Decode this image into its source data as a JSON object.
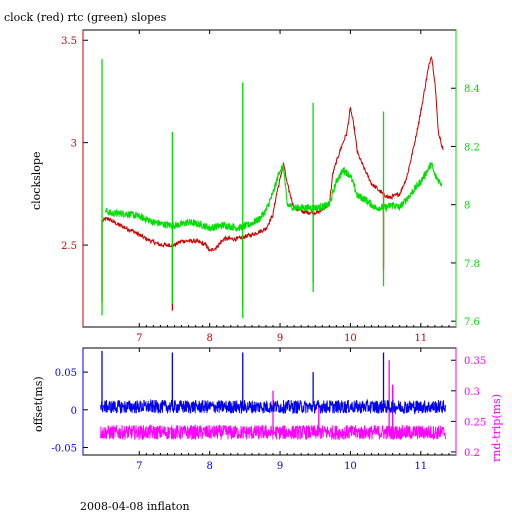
{
  "title": "clock (red) rtc (green) slopes",
  "footer": "2008-04-08 inflaton",
  "colors": {
    "red": "#cc0000",
    "green": "#00dd00",
    "blue": "#0000ee",
    "magenta": "#ff00ff",
    "axis": "#000000"
  },
  "chart_data": [
    {
      "type": "line",
      "title": "clock (red) rtc (green) slopes",
      "xlim": [
        6.2,
        11.5
      ],
      "x_ticks": [
        7,
        8,
        9,
        10,
        11
      ],
      "ylabel_left": "clockslope",
      "ylim_left": [
        2.1,
        3.55
      ],
      "y_ticks_left": [
        2.5,
        3,
        3.5
      ],
      "ylim_right": [
        7.58,
        8.6
      ],
      "y_ticks_right": [
        7.6,
        7.8,
        8,
        8.2,
        8.4
      ],
      "grid": false,
      "series": [
        {
          "axis": "left",
          "color": "red",
          "points": [
            [
              6.48,
              2.62
            ],
            [
              6.55,
              2.63
            ],
            [
              6.7,
              2.6
            ],
            [
              6.9,
              2.57
            ],
            [
              7.1,
              2.53
            ],
            [
              7.3,
              2.5
            ],
            [
              7.44,
              2.5
            ],
            [
              7.5,
              2.5
            ],
            [
              7.6,
              2.52
            ],
            [
              7.8,
              2.52
            ],
            [
              7.95,
              2.5
            ],
            [
              8.0,
              2.47
            ],
            [
              8.1,
              2.49
            ],
            [
              8.2,
              2.53
            ],
            [
              8.4,
              2.53
            ],
            [
              8.48,
              2.54
            ],
            [
              8.6,
              2.55
            ],
            [
              8.8,
              2.58
            ],
            [
              8.9,
              2.65
            ],
            [
              8.95,
              2.75
            ],
            [
              9.0,
              2.82
            ],
            [
              9.05,
              2.9
            ],
            [
              9.1,
              2.8
            ],
            [
              9.2,
              2.68
            ],
            [
              9.35,
              2.66
            ],
            [
              9.46,
              2.66
            ],
            [
              9.55,
              2.66
            ],
            [
              9.7,
              2.7
            ],
            [
              9.75,
              2.85
            ],
            [
              9.85,
              2.96
            ],
            [
              9.95,
              3.05
            ],
            [
              10.0,
              3.17
            ],
            [
              10.05,
              3.08
            ],
            [
              10.1,
              2.95
            ],
            [
              10.2,
              2.87
            ],
            [
              10.3,
              2.8
            ],
            [
              10.46,
              2.75
            ],
            [
              10.55,
              2.73
            ],
            [
              10.7,
              2.75
            ],
            [
              10.8,
              2.83
            ],
            [
              10.9,
              2.98
            ],
            [
              11.0,
              3.15
            ],
            [
              11.1,
              3.35
            ],
            [
              11.15,
              3.43
            ],
            [
              11.2,
              3.3
            ],
            [
              11.25,
              3.05
            ],
            [
              11.32,
              2.96
            ]
          ],
          "spikes": [
            {
              "x": 6.47,
              "low": 2.22,
              "high": 2.62
            },
            {
              "x": 7.47,
              "low": 2.18,
              "high": 2.5
            },
            {
              "x": 8.47,
              "low": 2.2,
              "high": 2.54
            },
            {
              "x": 9.47,
              "low": 2.32,
              "high": 2.66
            },
            {
              "x": 10.47,
              "low": 2.38,
              "high": 2.75
            }
          ]
        },
        {
          "axis": "right",
          "color": "green",
          "points": [
            [
              6.52,
              7.98
            ],
            [
              6.6,
              7.97
            ],
            [
              6.8,
              7.97
            ],
            [
              7.0,
              7.96
            ],
            [
              7.2,
              7.94
            ],
            [
              7.4,
              7.93
            ],
            [
              7.55,
              7.93
            ],
            [
              7.7,
              7.94
            ],
            [
              7.9,
              7.93
            ],
            [
              8.0,
              7.92
            ],
            [
              8.2,
              7.93
            ],
            [
              8.4,
              7.92
            ],
            [
              8.55,
              7.93
            ],
            [
              8.7,
              7.95
            ],
            [
              8.8,
              7.98
            ],
            [
              8.9,
              8.04
            ],
            [
              9.0,
              8.12
            ],
            [
              9.05,
              8.13
            ],
            [
              9.1,
              8.0
            ],
            [
              9.2,
              7.99
            ],
            [
              9.4,
              7.99
            ],
            [
              9.55,
              7.99
            ],
            [
              9.7,
              8.0
            ],
            [
              9.8,
              8.08
            ],
            [
              9.9,
              8.12
            ],
            [
              10.0,
              8.1
            ],
            [
              10.1,
              8.03
            ],
            [
              10.2,
              8.02
            ],
            [
              10.35,
              7.99
            ],
            [
              10.5,
              7.99
            ],
            [
              10.6,
              8.0
            ],
            [
              10.7,
              7.99
            ],
            [
              10.8,
              8.02
            ],
            [
              10.9,
              8.05
            ],
            [
              11.0,
              8.08
            ],
            [
              11.1,
              8.12
            ],
            [
              11.15,
              8.14
            ],
            [
              11.2,
              8.1
            ],
            [
              11.3,
              8.07
            ]
          ],
          "spikes": [
            {
              "x": 6.47,
              "low": 7.62,
              "high": 8.5
            },
            {
              "x": 7.47,
              "low": 7.66,
              "high": 8.25
            },
            {
              "x": 8.47,
              "low": 7.61,
              "high": 8.42
            },
            {
              "x": 9.47,
              "low": 7.7,
              "high": 8.35
            },
            {
              "x": 10.47,
              "low": 7.72,
              "high": 8.32
            }
          ]
        }
      ]
    },
    {
      "type": "line",
      "xlim": [
        6.2,
        11.5
      ],
      "x_ticks": [
        7,
        8,
        9,
        10,
        11
      ],
      "ylabel_left": "offset(ms)",
      "ylim_left": [
        -0.06,
        0.082
      ],
      "y_ticks_left": [
        -0.05,
        0,
        0.05
      ],
      "ylabel_right": "rnd-trip(ms)",
      "ylim_right": [
        0.195,
        0.37
      ],
      "y_ticks_right": [
        0.2,
        0.25,
        0.3,
        0.35
      ],
      "grid": false,
      "series": [
        {
          "axis": "left",
          "color": "blue",
          "x_range": [
            6.45,
            11.35
          ],
          "center": 0.004,
          "noise": 0.009,
          "spikes": [
            {
              "x": 6.47,
              "value": 0.078
            },
            {
              "x": 7.47,
              "value": 0.076
            },
            {
              "x": 8.47,
              "value": 0.076
            },
            {
              "x": 9.47,
              "value": 0.05
            },
            {
              "x": 10.47,
              "value": 0.076
            }
          ]
        },
        {
          "axis": "right",
          "color": "magenta",
          "x_range": [
            6.45,
            11.35
          ],
          "center": 0.232,
          "noise": 0.012,
          "spikes": [
            {
              "x": 8.9,
              "value": 0.3
            },
            {
              "x": 9.55,
              "value": 0.28
            },
            {
              "x": 10.55,
              "value": 0.35
            },
            {
              "x": 10.6,
              "value": 0.31
            }
          ]
        }
      ]
    }
  ]
}
